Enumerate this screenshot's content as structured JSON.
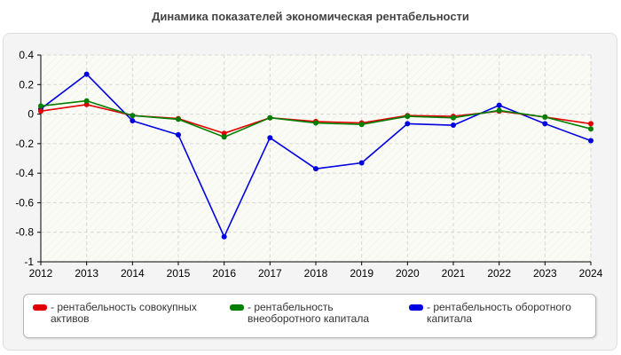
{
  "chart_data": {
    "type": "line",
    "title": "Динамика показателей экономическая рентабельности",
    "x": [
      "2012",
      "2013",
      "2014",
      "2015",
      "2016",
      "2017",
      "2018",
      "2019",
      "2020",
      "2021",
      "2022",
      "2023",
      "2024"
    ],
    "ylim": [
      -1,
      0.4
    ],
    "yticks": [
      "0.4",
      "0.2",
      "0",
      "-0.2",
      "-0.4",
      "-0.6",
      "-0.8",
      "-1"
    ],
    "grid": true,
    "legend_position": "bottom",
    "series": [
      {
        "name": "- рентабельность совокупных активов",
        "color": "#e00000",
        "values": [
          0.02,
          0.065,
          -0.01,
          -0.03,
          -0.13,
          -0.025,
          -0.05,
          -0.06,
          -0.01,
          -0.015,
          0.02,
          -0.02,
          -0.065
        ]
      },
      {
        "name": "- рентабельность внеоборотного капитала",
        "color": "#008000",
        "values": [
          0.055,
          0.09,
          -0.01,
          -0.035,
          -0.155,
          -0.025,
          -0.06,
          -0.07,
          -0.015,
          -0.025,
          0.025,
          -0.02,
          -0.1
        ]
      },
      {
        "name": "- рентабельность оборотного капитала",
        "color": "#0000e0",
        "values": [
          0.035,
          0.27,
          -0.045,
          -0.14,
          -0.83,
          -0.16,
          -0.37,
          -0.33,
          -0.065,
          -0.075,
          0.06,
          -0.065,
          -0.18
        ]
      }
    ]
  }
}
